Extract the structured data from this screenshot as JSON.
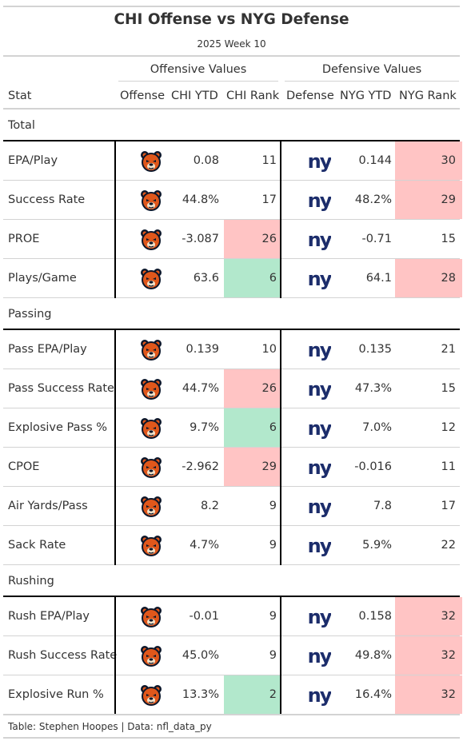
{
  "title": "CHI Offense vs NYG Defense",
  "subtitle": "2025 Week 10",
  "spanners": {
    "offense": "Offensive Values",
    "defense": "Defensive Values"
  },
  "columns": {
    "stat": "Stat",
    "offense": "Offense",
    "off_ytd": "CHI YTD",
    "off_rank": "CHI Rank",
    "defense": "Defense",
    "def_ytd": "NYG YTD",
    "def_rank": "NYG Rank"
  },
  "colors": {
    "good": "#b2e8cc",
    "bad": "#ffc4c4",
    "bears_orange": "#e0571b",
    "bears_navy": "#0b162a",
    "giants_blue": "#1c2d6b"
  },
  "groups": [
    {
      "label": "Total",
      "rows": [
        {
          "stat": "EPA/Play",
          "off_ytd": "0.08",
          "off_rank": "11",
          "off_rank_status": "none",
          "def_ytd": "0.144",
          "def_rank": "30",
          "def_rank_status": "bad"
        },
        {
          "stat": "Success Rate",
          "off_ytd": "44.8%",
          "off_rank": "17",
          "off_rank_status": "none",
          "def_ytd": "48.2%",
          "def_rank": "29",
          "def_rank_status": "bad"
        },
        {
          "stat": "PROE",
          "off_ytd": "-3.087",
          "off_rank": "26",
          "off_rank_status": "bad",
          "def_ytd": "-0.71",
          "def_rank": "15",
          "def_rank_status": "none"
        },
        {
          "stat": "Plays/Game",
          "off_ytd": "63.6",
          "off_rank": "6",
          "off_rank_status": "good",
          "def_ytd": "64.1",
          "def_rank": "28",
          "def_rank_status": "bad"
        }
      ]
    },
    {
      "label": "Passing",
      "rows": [
        {
          "stat": "Pass EPA/Play",
          "off_ytd": "0.139",
          "off_rank": "10",
          "off_rank_status": "none",
          "def_ytd": "0.135",
          "def_rank": "21",
          "def_rank_status": "none"
        },
        {
          "stat": "Pass Success Rate",
          "off_ytd": "44.7%",
          "off_rank": "26",
          "off_rank_status": "bad",
          "def_ytd": "47.3%",
          "def_rank": "15",
          "def_rank_status": "none"
        },
        {
          "stat": "Explosive Pass %",
          "off_ytd": "9.7%",
          "off_rank": "6",
          "off_rank_status": "good",
          "def_ytd": "7.0%",
          "def_rank": "12",
          "def_rank_status": "none"
        },
        {
          "stat": "CPOE",
          "off_ytd": "-2.962",
          "off_rank": "29",
          "off_rank_status": "bad",
          "def_ytd": "-0.016",
          "def_rank": "11",
          "def_rank_status": "none"
        },
        {
          "stat": "Air Yards/Pass",
          "off_ytd": "8.2",
          "off_rank": "9",
          "off_rank_status": "none",
          "def_ytd": "7.8",
          "def_rank": "17",
          "def_rank_status": "none"
        },
        {
          "stat": "Sack Rate",
          "off_ytd": "4.7%",
          "off_rank": "9",
          "off_rank_status": "none",
          "def_ytd": "5.9%",
          "def_rank": "22",
          "def_rank_status": "none"
        }
      ]
    },
    {
      "label": "Rushing",
      "rows": [
        {
          "stat": "Rush EPA/Play",
          "off_ytd": "-0.01",
          "off_rank": "9",
          "off_rank_status": "none",
          "def_ytd": "0.158",
          "def_rank": "32",
          "def_rank_status": "bad"
        },
        {
          "stat": "Rush Success Rate",
          "off_ytd": "45.0%",
          "off_rank": "9",
          "off_rank_status": "none",
          "def_ytd": "49.8%",
          "def_rank": "32",
          "def_rank_status": "bad"
        },
        {
          "stat": "Explosive Run %",
          "off_ytd": "13.3%",
          "off_rank": "2",
          "off_rank_status": "good",
          "def_ytd": "16.4%",
          "def_rank": "32",
          "def_rank_status": "bad"
        }
      ]
    }
  ],
  "source_note": "Table: Stephen Hoopes | Data: nfl_data_py",
  "logos": {
    "offense": "bears-head-logo",
    "defense": "giants-ny-logo",
    "giants_text": "ny"
  }
}
